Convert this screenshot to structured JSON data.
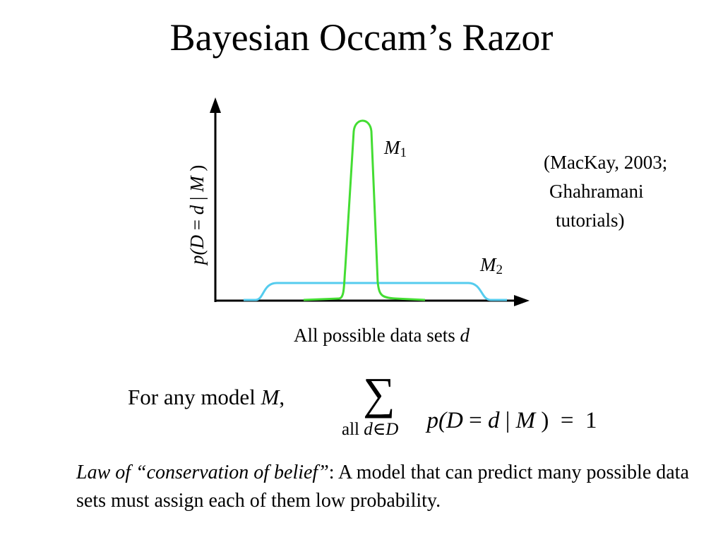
{
  "slide": {
    "title": "Bayesian Occam’s Razor"
  },
  "figure": {
    "ylabel": {
      "lhs": "p(D",
      "eq": " = ",
      "d": "d",
      "bar": " | ",
      "model": "M",
      "close": " )"
    },
    "xlabel": {
      "text": "All possible data sets ",
      "var": "d"
    },
    "curves": [
      {
        "symbol": "M",
        "subscript": "1",
        "color": "#44dd33"
      },
      {
        "symbol": "M",
        "subscript": "2",
        "color": "#55ccee"
      }
    ],
    "axis_color": "#000000"
  },
  "citation": {
    "lines": [
      "(MacKay, 2003;",
      "Ghahramani",
      "tutorials)"
    ]
  },
  "formula": {
    "lead_text": "For any model ",
    "lead_var": "M",
    "lead_comma": ",",
    "sum_symbol": "∑",
    "sum_sub_text": "all ",
    "sum_sub_var": "d",
    "sum_sub_in": "∈",
    "sum_sub_set": "D",
    "term_p": "p(",
    "term_D": "D",
    "term_eq": " = ",
    "term_d": "d",
    "term_bar": " | ",
    "term_M": "M",
    "term_close": " )",
    "term_equals": "  =  ",
    "term_value": "1"
  },
  "law": {
    "italic": "Law of “conservation of belief”",
    "rest": ": A model that can predict many possible data sets must assign each of them low probability."
  }
}
